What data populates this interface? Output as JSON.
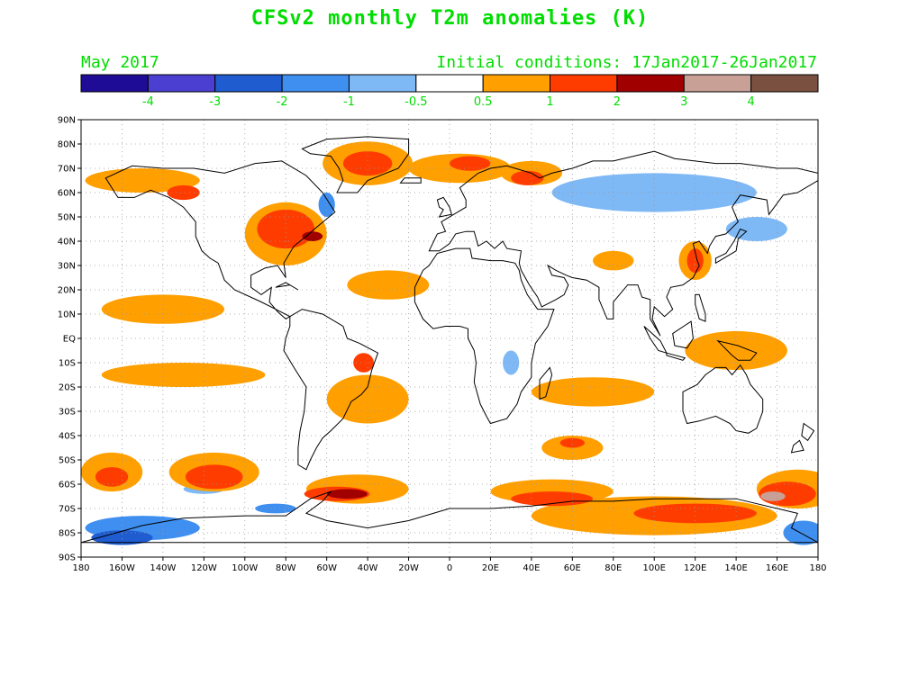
{
  "title": "CFSv2 monthly T2m anomalies (K)",
  "month_label": "May 2017",
  "init_label": "Initial conditions: 17Jan2017-26Jan2017",
  "colorbar": {
    "colors": [
      "#1e0c96",
      "#4a3fd0",
      "#1e5cd0",
      "#3f8ff0",
      "#7eb8f5",
      "#ffffff",
      "#ff9f00",
      "#ff3c00",
      "#a00000",
      "#c8a096",
      "#7a5040"
    ],
    "labels": [
      "-4",
      "-3",
      "-2",
      "-1",
      "-0.5",
      "0.5",
      "1",
      "2",
      "3",
      "4"
    ]
  },
  "axes": {
    "lat_labels": [
      "90N",
      "80N",
      "70N",
      "60N",
      "50N",
      "40N",
      "30N",
      "20N",
      "10N",
      "EQ",
      "10S",
      "20S",
      "30S",
      "40S",
      "50S",
      "60S",
      "70S",
      "80S",
      "90S"
    ],
    "lon_labels": [
      "180",
      "160W",
      "140W",
      "120W",
      "100W",
      "80W",
      "60W",
      "40W",
      "20W",
      "0",
      "20E",
      "40E",
      "60E",
      "80E",
      "100E",
      "120E",
      "140E",
      "160E",
      "180"
    ]
  },
  "anomaly_regions": [
    {
      "level": "1",
      "lon": -150,
      "lat": 65,
      "rx": 28,
      "ry": 5
    },
    {
      "level": "2",
      "lon": -130,
      "lat": 60,
      "rx": 8,
      "ry": 3
    },
    {
      "level": "1",
      "lon": -40,
      "lat": 72,
      "rx": 22,
      "ry": 9
    },
    {
      "level": "2",
      "lon": -40,
      "lat": 72,
      "rx": 12,
      "ry": 5
    },
    {
      "level": "1",
      "lon": -80,
      "lat": 43,
      "rx": 20,
      "ry": 13
    },
    {
      "level": "2",
      "lon": -80,
      "lat": 45,
      "rx": 14,
      "ry": 8
    },
    {
      "level": "3",
      "lon": -67,
      "lat": 42,
      "rx": 5,
      "ry": 2
    },
    {
      "level": "-1",
      "lon": -60,
      "lat": 55,
      "rx": 4,
      "ry": 5
    },
    {
      "level": "1",
      "lon": 5,
      "lat": 70,
      "rx": 25,
      "ry": 6
    },
    {
      "level": "2",
      "lon": 10,
      "lat": 72,
      "rx": 10,
      "ry": 3
    },
    {
      "level": "1",
      "lon": 40,
      "lat": 68,
      "rx": 15,
      "ry": 5
    },
    {
      "level": "2",
      "lon": 38,
      "lat": 66,
      "rx": 8,
      "ry": 3
    },
    {
      "level": "1",
      "lon": 120,
      "lat": 32,
      "rx": 8,
      "ry": 8
    },
    {
      "level": "2",
      "lon": 120,
      "lat": 32,
      "rx": 4,
      "ry": 5
    },
    {
      "level": "1",
      "lon": 80,
      "lat": 32,
      "rx": 10,
      "ry": 4
    },
    {
      "level": "-0.5",
      "lon": 100,
      "lat": 60,
      "rx": 50,
      "ry": 8
    },
    {
      "level": "-0.5",
      "lon": 150,
      "lat": 45,
      "rx": 15,
      "ry": 5
    },
    {
      "level": "1",
      "lon": -30,
      "lat": 22,
      "rx": 20,
      "ry": 6
    },
    {
      "level": "1",
      "lon": -140,
      "lat": 12,
      "rx": 30,
      "ry": 6
    },
    {
      "level": "1",
      "lon": -130,
      "lat": -15,
      "rx": 40,
      "ry": 5
    },
    {
      "level": "1",
      "lon": -40,
      "lat": -25,
      "rx": 20,
      "ry": 10
    },
    {
      "level": "2",
      "lon": -42,
      "lat": -10,
      "rx": 5,
      "ry": 4
    },
    {
      "level": "1",
      "lon": 70,
      "lat": -22,
      "rx": 30,
      "ry": 6
    },
    {
      "level": "-0.5",
      "lon": 30,
      "lat": -10,
      "rx": 4,
      "ry": 5
    },
    {
      "level": "1",
      "lon": 140,
      "lat": -5,
      "rx": 25,
      "ry": 8
    },
    {
      "level": "1",
      "lon": -165,
      "lat": -55,
      "rx": 15,
      "ry": 8
    },
    {
      "level": "2",
      "lon": -165,
      "lat": -57,
      "rx": 8,
      "ry": 4
    },
    {
      "level": "1",
      "lon": -115,
      "lat": -55,
      "rx": 22,
      "ry": 8
    },
    {
      "level": "2",
      "lon": -115,
      "lat": -57,
      "rx": 14,
      "ry": 5
    },
    {
      "level": "1",
      "lon": -45,
      "lat": -62,
      "rx": 25,
      "ry": 6
    },
    {
      "level": "3",
      "lon": -50,
      "lat": -64,
      "rx": 10,
      "ry": 2
    },
    {
      "level": "2",
      "lon": -55,
      "lat": -64,
      "rx": 16,
      "ry": 3
    },
    {
      "level": "1",
      "lon": 60,
      "lat": -45,
      "rx": 15,
      "ry": 5
    },
    {
      "level": "2",
      "lon": 60,
      "lat": -43,
      "rx": 6,
      "ry": 2
    },
    {
      "level": "1",
      "lon": 50,
      "lat": -63,
      "rx": 30,
      "ry": 5
    },
    {
      "level": "2",
      "lon": 50,
      "lat": -66,
      "rx": 20,
      "ry": 3
    },
    {
      "level": "1",
      "lon": 100,
      "lat": -73,
      "rx": 60,
      "ry": 8
    },
    {
      "level": "2",
      "lon": 120,
      "lat": -72,
      "rx": 30,
      "ry": 4
    },
    {
      "level": "1",
      "lon": 170,
      "lat": -62,
      "rx": 20,
      "ry": 8
    },
    {
      "level": "2",
      "lon": 165,
      "lat": -64,
      "rx": 14,
      "ry": 5
    },
    {
      "level": "4",
      "lon": 158,
      "lat": -65,
      "rx": 6,
      "ry": 2
    },
    {
      "level": "-1",
      "lon": -150,
      "lat": -78,
      "rx": 28,
      "ry": 5
    },
    {
      "level": "-2",
      "lon": -160,
      "lat": -82,
      "rx": 15,
      "ry": 3
    },
    {
      "level": "-0.5",
      "lon": -120,
      "lat": -62,
      "rx": 10,
      "ry": 2
    },
    {
      "level": "-1",
      "lon": -85,
      "lat": -70,
      "rx": 10,
      "ry": 2
    },
    {
      "level": "-1",
      "lon": 173,
      "lat": -80,
      "rx": 10,
      "ry": 5
    }
  ]
}
